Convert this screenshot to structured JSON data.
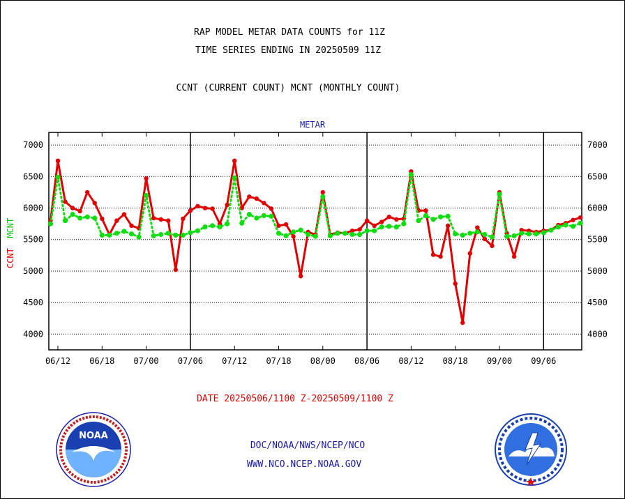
{
  "title": "RAP MODEL METAR DATA COUNTS for 11Z",
  "subtitle": "TIME SERIES ENDING IN 20250509 11Z",
  "legend_text": "CCNT (CURRENT COUNT) MCNT (MONTHLY COUNT)",
  "panel_label": "METAR",
  "ylabel": {
    "current": "CCNT",
    "monthly": "MCNT"
  },
  "date_range": "DATE 20250506/1100 Z-20250509/1100 Z",
  "links": {
    "line1": "DOC/NOAA/NWS/NCEP/NCO",
    "line2": "WWW.NCO.NCEP.NOAA.GOV"
  },
  "logos": {
    "left": "NOAA",
    "right": "NATIONAL WEATHER SERVICE"
  },
  "colors": {
    "current": "#e00000",
    "monthly": "#10dd10",
    "panel": "#1a1aaa"
  },
  "chart_data": {
    "type": "line",
    "title": "RAP MODEL METAR DATA COUNTS for 11Z",
    "x_tick_labels": [
      "06/12",
      "06/18",
      "07/00",
      "07/06",
      "07/12",
      "07/18",
      "08/00",
      "08/06",
      "08/12",
      "08/18",
      "09/00",
      "09/06"
    ],
    "y_ticks": [
      4000,
      4500,
      5000,
      5500,
      6000,
      6500,
      7000
    ],
    "ylim": [
      3750,
      7200
    ],
    "grid": "horizontal dotted",
    "series": [
      {
        "name": "CCNT",
        "color": "#e00000",
        "values": [
          5800,
          6750,
          6100,
          6000,
          5950,
          6250,
          6080,
          5830,
          5580,
          5800,
          5900,
          5720,
          5680,
          6470,
          5840,
          5820,
          5800,
          5020,
          5830,
          5960,
          6030,
          6000,
          5990,
          5750,
          6050,
          6750,
          6000,
          6180,
          6150,
          6080,
          5990,
          5720,
          5740,
          5550,
          4920,
          5620,
          5580,
          6250,
          5580,
          5610,
          5600,
          5640,
          5660,
          5800,
          5720,
          5780,
          5860,
          5820,
          5830,
          6580,
          5960,
          5960,
          5260,
          5230,
          5720,
          4800,
          4180,
          5280,
          5690,
          5510,
          5400,
          6250,
          5600,
          5230,
          5650,
          5640,
          5620,
          5640,
          5650,
          5730,
          5760,
          5810,
          5850
        ]
      },
      {
        "name": "MCNT",
        "color": "#10dd10",
        "values": [
          5750,
          6490,
          5800,
          5900,
          5840,
          5860,
          5840,
          5570,
          5570,
          5600,
          5630,
          5590,
          5540,
          6200,
          5560,
          5580,
          5600,
          5570,
          5570,
          5610,
          5640,
          5700,
          5720,
          5700,
          5750,
          6480,
          5760,
          5900,
          5840,
          5880,
          5870,
          5600,
          5560,
          5620,
          5650,
          5580,
          5550,
          6180,
          5560,
          5600,
          5600,
          5580,
          5580,
          5640,
          5640,
          5700,
          5710,
          5700,
          5750,
          6530,
          5800,
          5880,
          5820,
          5860,
          5870,
          5590,
          5570,
          5600,
          5620,
          5580,
          5540,
          6220,
          5550,
          5560,
          5600,
          5590,
          5590,
          5610,
          5650,
          5700,
          5730,
          5710,
          5760
        ]
      }
    ]
  }
}
